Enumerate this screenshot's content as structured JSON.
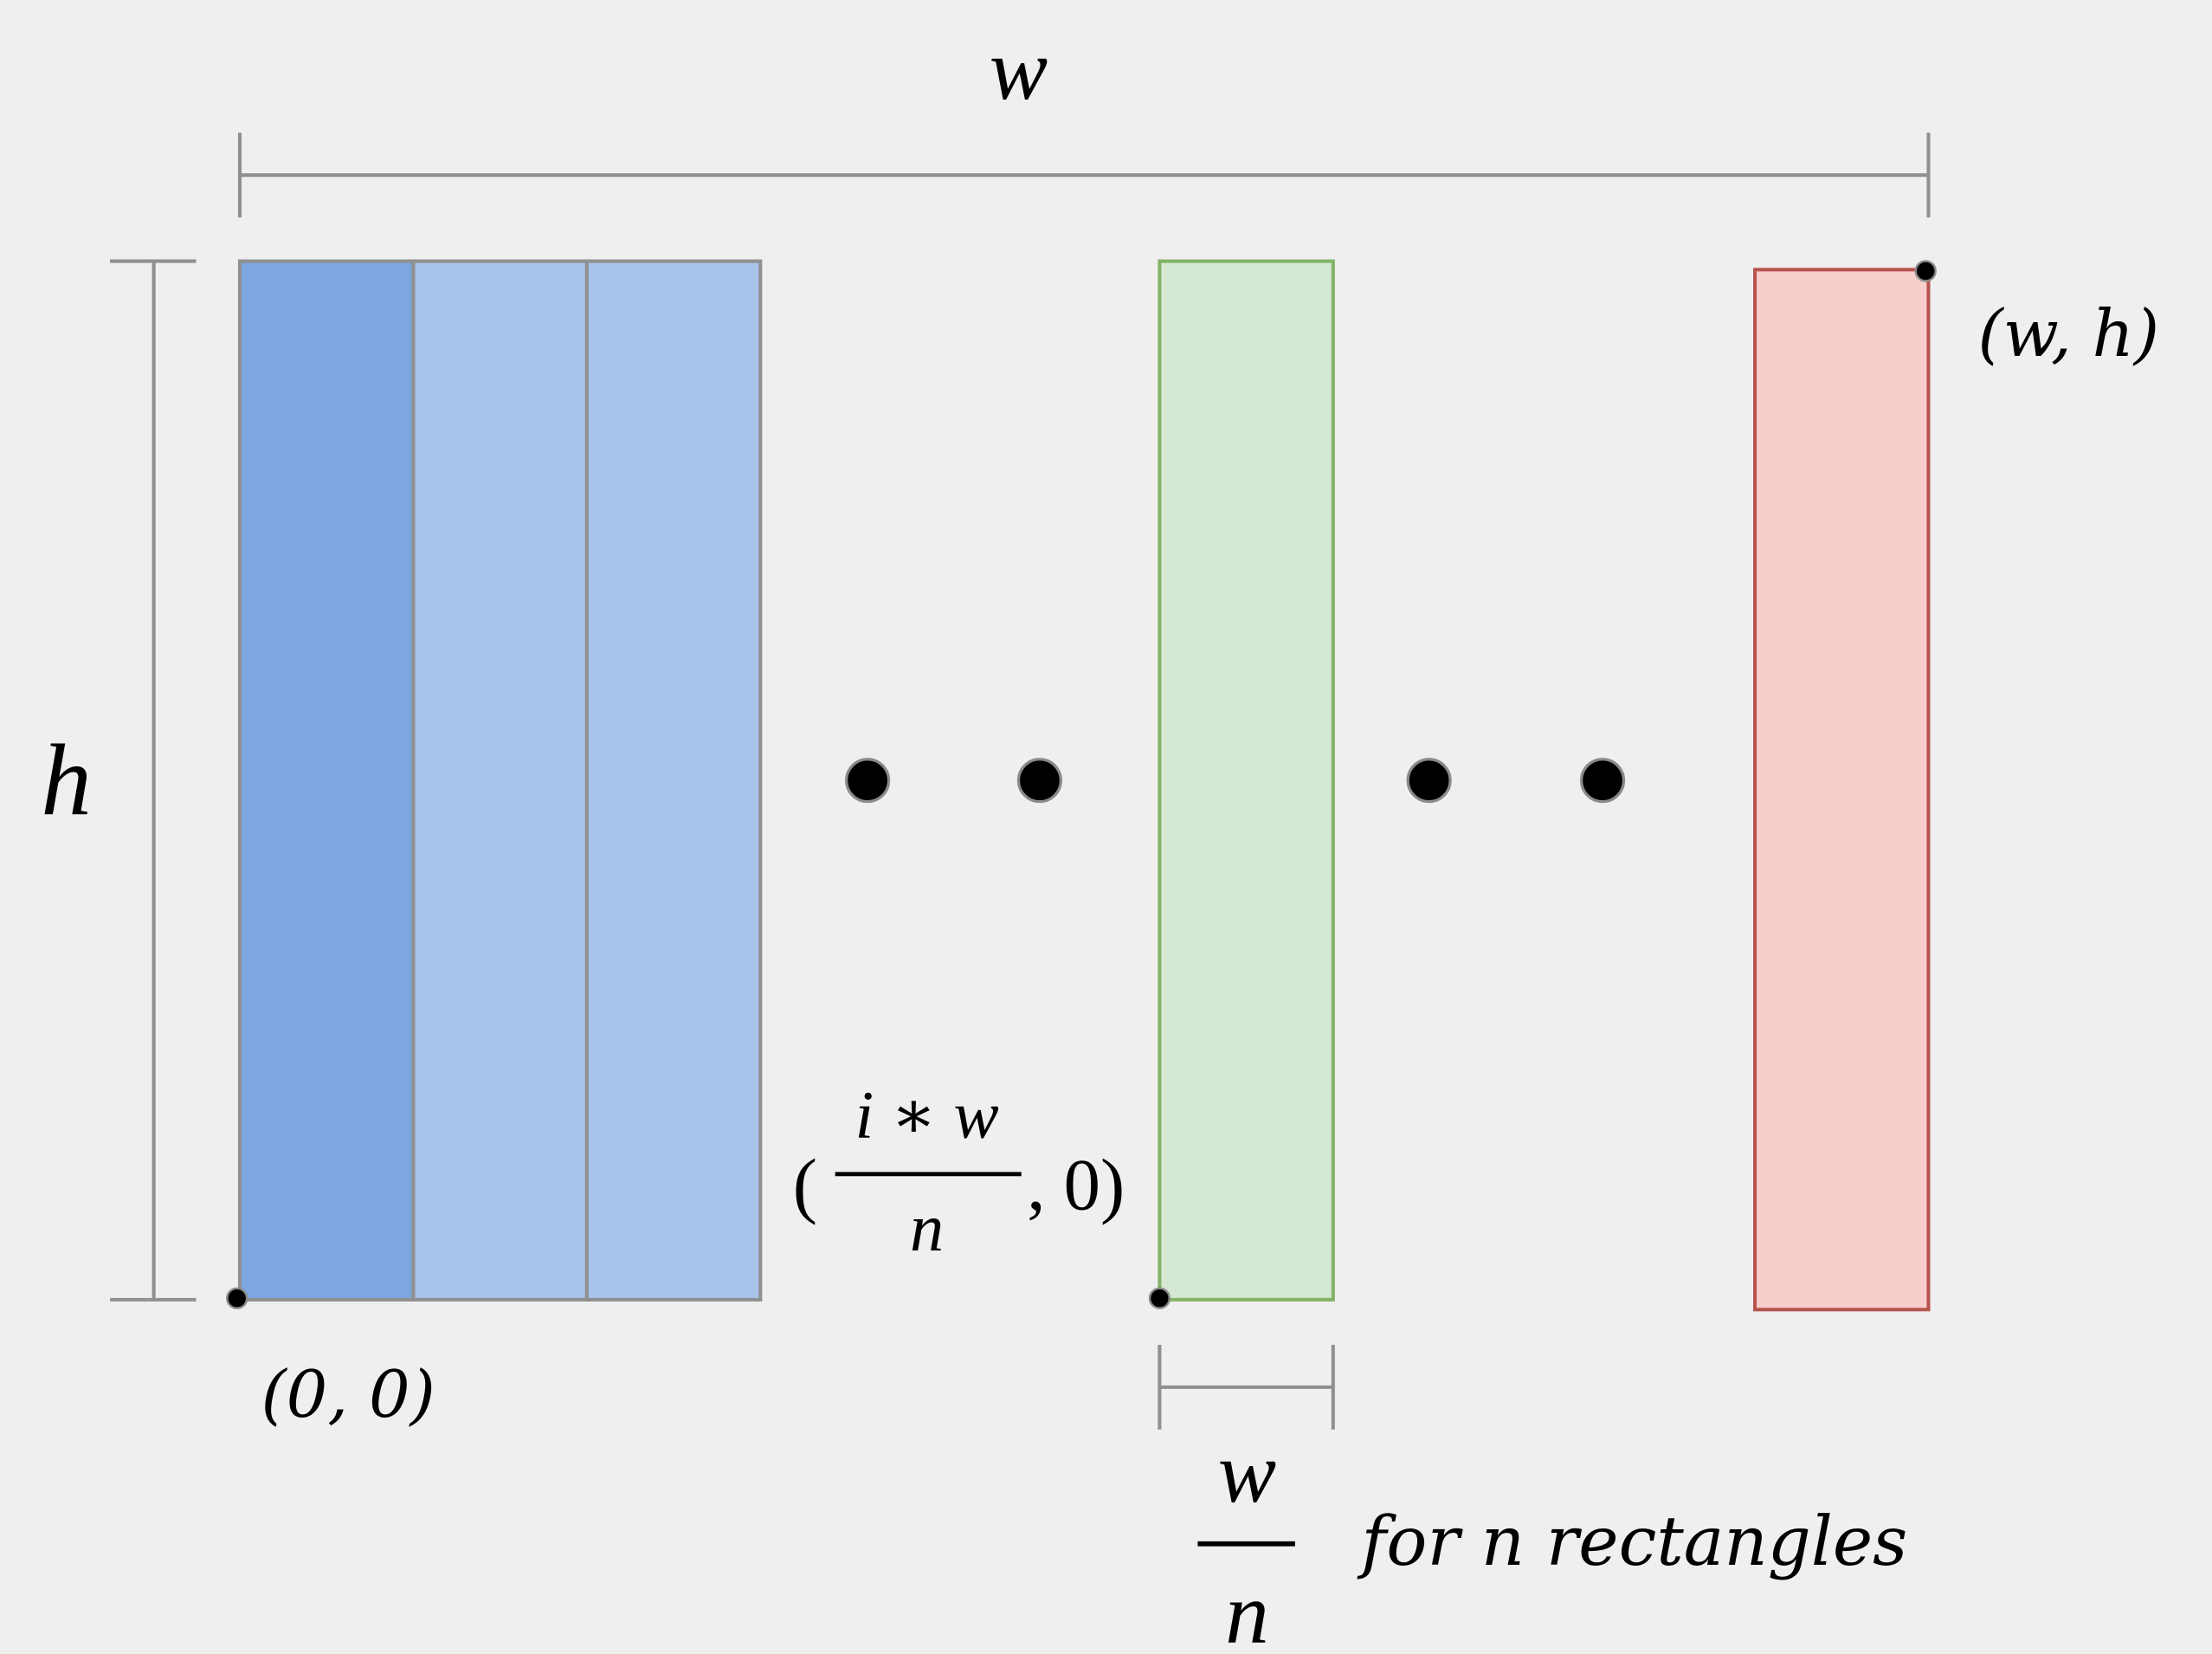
{
  "labels": {
    "width": "w",
    "height": "h",
    "origin": "(0, 0)",
    "corner": "(w, h)",
    "position_open": "(",
    "position_numerator": "i ∗ w",
    "position_denominator": "n",
    "position_close": ", 0)",
    "rect_width_numerator": "w",
    "rect_width_denominator": "n",
    "caption": "for n rectangles"
  },
  "colors": {
    "first_rect": "#7ea6e0",
    "blue_rect": "#a9c4eb",
    "blue_stroke": "#909090",
    "green_rect": "#d5e8d4",
    "green_stroke": "#82b366",
    "red_rect": "#f8cecc",
    "red_stroke": "#b85450",
    "background": "#efefef"
  }
}
